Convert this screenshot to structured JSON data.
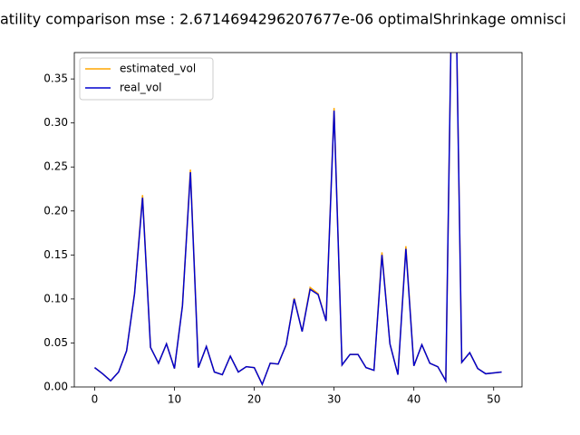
{
  "chart_data": {
    "type": "line",
    "title": "atility comparison mse : 2.6714694296207677e-06 optimalShrinkage omnisci",
    "x": [
      0,
      1,
      2,
      3,
      4,
      5,
      6,
      7,
      8,
      9,
      10,
      11,
      12,
      13,
      14,
      15,
      16,
      17,
      18,
      19,
      20,
      21,
      22,
      23,
      24,
      25,
      26,
      27,
      28,
      29,
      30,
      31,
      32,
      33,
      34,
      35,
      36,
      37,
      38,
      39,
      40,
      41,
      42,
      43,
      44,
      45,
      46,
      47,
      48,
      49,
      50,
      51
    ],
    "series": [
      {
        "name": "estimated_vol",
        "color": "#ffa500",
        "values": [
          0.022,
          0.015,
          0.007,
          0.017,
          0.041,
          0.107,
          0.218,
          0.045,
          0.027,
          0.049,
          0.021,
          0.093,
          0.247,
          0.022,
          0.046,
          0.017,
          0.014,
          0.035,
          0.017,
          0.023,
          0.022,
          0.003,
          0.027,
          0.026,
          0.048,
          0.101,
          0.063,
          0.113,
          0.106,
          0.075,
          0.317,
          0.025,
          0.037,
          0.037,
          0.022,
          0.019,
          0.153,
          0.049,
          0.014,
          0.16,
          0.024,
          0.048,
          0.027,
          0.023,
          0.007,
          0.6,
          0.028,
          0.039,
          0.021,
          0.015,
          0.016,
          0.017
        ]
      },
      {
        "name": "real_vol",
        "color": "#0000cd",
        "values": [
          0.022,
          0.015,
          0.007,
          0.017,
          0.041,
          0.106,
          0.215,
          0.045,
          0.027,
          0.049,
          0.021,
          0.092,
          0.244,
          0.022,
          0.046,
          0.017,
          0.014,
          0.035,
          0.017,
          0.023,
          0.022,
          0.003,
          0.027,
          0.026,
          0.048,
          0.1,
          0.063,
          0.111,
          0.105,
          0.075,
          0.314,
          0.025,
          0.037,
          0.037,
          0.022,
          0.019,
          0.15,
          0.049,
          0.014,
          0.157,
          0.024,
          0.048,
          0.027,
          0.023,
          0.007,
          0.6,
          0.028,
          0.039,
          0.021,
          0.015,
          0.016,
          0.017
        ]
      }
    ],
    "xlim": [
      -2.55,
      53.55
    ],
    "xticks": [
      0,
      10,
      20,
      30,
      40,
      50
    ],
    "ylim": [
      0,
      0.38
    ],
    "yticks": [
      {
        "value": 0,
        "label": "0.00"
      },
      {
        "value": 0.05,
        "label": "0.05"
      },
      {
        "value": 0.1,
        "label": "0.10"
      },
      {
        "value": 0.15,
        "label": "0.15"
      },
      {
        "value": 0.2,
        "label": "0.20"
      },
      {
        "value": 0.25,
        "label": "0.25"
      },
      {
        "value": 0.3,
        "label": "0.30"
      },
      {
        "value": 0.35,
        "label": "0.35"
      }
    ],
    "legend": "upper left",
    "grid": false
  }
}
